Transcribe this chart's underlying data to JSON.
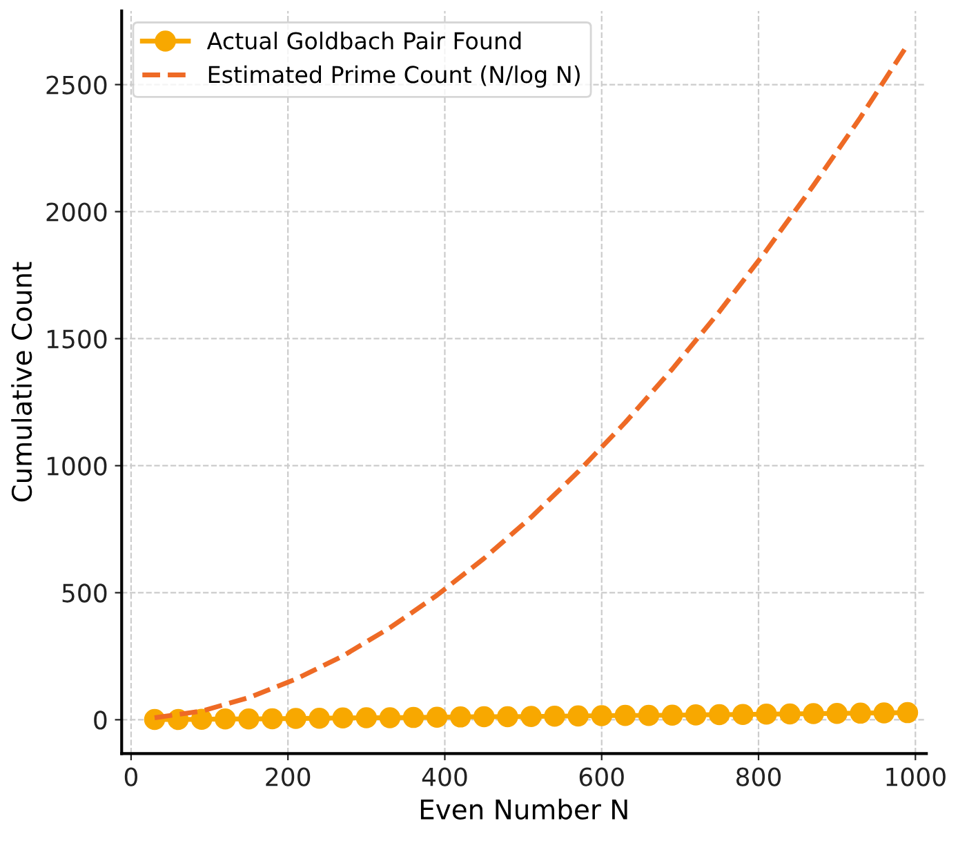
{
  "chart_data": {
    "type": "line",
    "xlabel": "Even Number N",
    "ylabel": "Cumulative Count",
    "series": [
      {
        "name": "Actual Goldbach Pair Found",
        "color": "#f8a800",
        "marker": "circle",
        "line_style": "solid",
        "x": [
          30,
          60,
          90,
          120,
          150,
          180,
          210,
          240,
          270,
          300,
          330,
          360,
          390,
          420,
          450,
          480,
          510,
          540,
          570,
          600,
          630,
          660,
          690,
          720,
          750,
          780,
          810,
          840,
          870,
          900,
          930,
          960,
          990
        ],
        "values": [
          1,
          1,
          2,
          3,
          3,
          4,
          5,
          6,
          7,
          8,
          8,
          9,
          10,
          11,
          12,
          12,
          13,
          14,
          15,
          16,
          17,
          17,
          18,
          19,
          20,
          21,
          22,
          23,
          24,
          25,
          26,
          27,
          28
        ]
      },
      {
        "name": "Estimated Prime Count (N/log N)",
        "color": "#ee6a25",
        "marker": "none",
        "line_style": "dashed",
        "x": [
          30,
          90,
          150,
          210,
          270,
          330,
          390,
          450,
          510,
          570,
          630,
          690,
          750,
          810,
          870,
          930,
          990
        ],
        "values": [
          8,
          34,
          87,
          160,
          251,
          362,
          490,
          635,
          797,
          976,
          1170,
          1380,
          1606,
          1847,
          2103,
          2371,
          2657
        ]
      }
    ],
    "xlim": [
      -12,
      1014
    ],
    "ylim": [
      -133,
      2790
    ],
    "xticks": [
      0,
      200,
      400,
      600,
      800,
      1000
    ],
    "yticks": [
      0,
      500,
      1000,
      1500,
      2000,
      2500
    ],
    "grid": true,
    "legend": "top left"
  }
}
